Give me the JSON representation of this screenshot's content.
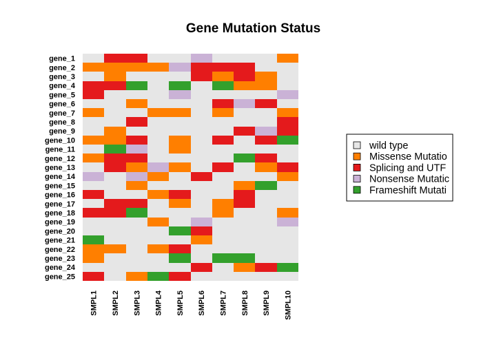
{
  "chart_data": {
    "type": "heatmap",
    "title": "Gene Mutation Status",
    "columns": [
      "SMPL1",
      "SMPL2",
      "SMPL3",
      "SMPL4",
      "SMPL5",
      "SMPL6",
      "SMPL7",
      "SMPL8",
      "SMPL9",
      "SMPL10"
    ],
    "rows": [
      "gene_1",
      "gene_2",
      "gene_3",
      "gene_4",
      "gene_5",
      "gene_6",
      "gene_7",
      "gene_8",
      "gene_9",
      "gene_10",
      "gene_11",
      "gene_12",
      "gene_13",
      "gene_14",
      "gene_15",
      "gene_16",
      "gene_17",
      "gene_18",
      "gene_19",
      "gene_20",
      "gene_21",
      "gene_22",
      "gene_23",
      "gene_24",
      "gene_25"
    ],
    "categories": [
      {
        "code": 0,
        "label": "wild type",
        "color": "#e6e6e6"
      },
      {
        "code": 1,
        "label": "Missense Mutatio",
        "color": "#ff7f00"
      },
      {
        "code": 2,
        "label": "Splicing and UTF",
        "color": "#e41a1c"
      },
      {
        "code": 3,
        "label": "Nonsense Mutatic",
        "color": "#cab2d6"
      },
      {
        "code": 4,
        "label": "Frameshift Mutati",
        "color": "#33a02c"
      }
    ],
    "legend": "right",
    "matrix": [
      [
        0,
        2,
        2,
        0,
        0,
        3,
        0,
        0,
        0,
        1
      ],
      [
        1,
        1,
        1,
        1,
        3,
        2,
        2,
        2,
        0,
        0
      ],
      [
        0,
        1,
        0,
        0,
        0,
        2,
        1,
        2,
        1,
        0
      ],
      [
        2,
        2,
        4,
        0,
        4,
        0,
        4,
        1,
        1,
        0
      ],
      [
        2,
        0,
        0,
        0,
        3,
        0,
        0,
        0,
        0,
        3
      ],
      [
        0,
        0,
        1,
        0,
        0,
        0,
        2,
        3,
        2,
        0
      ],
      [
        1,
        0,
        0,
        1,
        1,
        0,
        1,
        0,
        0,
        1
      ],
      [
        0,
        0,
        2,
        0,
        0,
        0,
        0,
        0,
        0,
        2
      ],
      [
        0,
        1,
        0,
        0,
        0,
        0,
        0,
        2,
        3,
        2
      ],
      [
        1,
        1,
        2,
        0,
        1,
        0,
        2,
        0,
        2,
        4
      ],
      [
        0,
        4,
        3,
        0,
        1,
        0,
        0,
        0,
        0,
        0
      ],
      [
        1,
        2,
        2,
        0,
        0,
        0,
        0,
        4,
        2,
        0
      ],
      [
        0,
        2,
        1,
        3,
        1,
        0,
        2,
        0,
        1,
        2
      ],
      [
        3,
        0,
        3,
        1,
        0,
        2,
        0,
        0,
        0,
        1
      ],
      [
        0,
        0,
        1,
        0,
        0,
        0,
        0,
        1,
        4,
        0
      ],
      [
        2,
        0,
        0,
        1,
        2,
        0,
        0,
        2,
        0,
        0
      ],
      [
        0,
        2,
        2,
        0,
        1,
        0,
        1,
        2,
        0,
        0
      ],
      [
        2,
        2,
        4,
        0,
        0,
        0,
        1,
        0,
        0,
        1
      ],
      [
        0,
        0,
        0,
        1,
        0,
        3,
        0,
        0,
        0,
        3
      ],
      [
        0,
        0,
        0,
        0,
        4,
        2,
        0,
        0,
        0,
        0
      ],
      [
        4,
        0,
        0,
        0,
        0,
        1,
        0,
        0,
        0,
        0
      ],
      [
        1,
        1,
        0,
        1,
        2,
        0,
        0,
        0,
        0,
        0
      ],
      [
        1,
        0,
        0,
        0,
        4,
        0,
        4,
        4,
        0,
        0
      ],
      [
        0,
        0,
        0,
        0,
        0,
        2,
        0,
        1,
        2,
        4
      ],
      [
        2,
        0,
        1,
        4,
        2,
        0,
        0,
        0,
        0,
        0
      ]
    ]
  }
}
